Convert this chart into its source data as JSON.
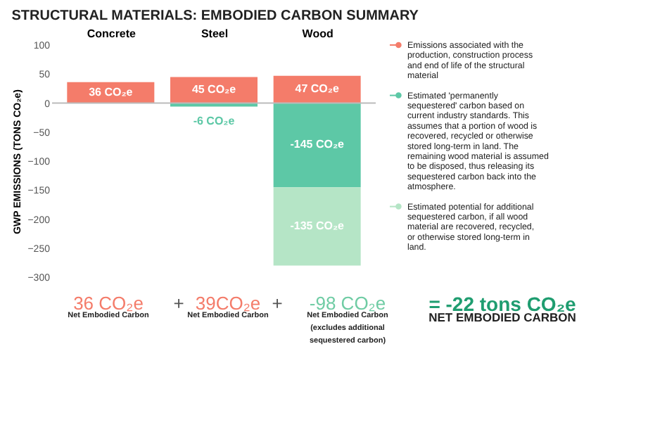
{
  "chart_data": {
    "type": "bar",
    "title": "STRUCTURAL MATERIALS: EMBODIED CARBON SUMMARY",
    "ylabel": "GWP EMISSIONS (TONS CO₂e)",
    "categories": [
      "Concrete",
      "Steel",
      "Wood"
    ],
    "stacked": true,
    "series": [
      {
        "name": "Emissions associated with the production, construction process and end of life of the structural material",
        "color": "#f47c6a",
        "values": [
          36,
          45,
          47
        ],
        "value_labels": [
          "36 CO₂e",
          "45 CO₂e",
          "47 CO₂e"
        ]
      },
      {
        "name": "Estimated 'permanently sequestered' carbon based on current industry standards. This assumes that a portion of wood is recovered, recycled or otherwise stored long-term in land. The remaining wood material is assumed to be disposed, thus releasing its sequestered carbon back into the atmosphere.",
        "color": "#5dc8a6",
        "values": [
          0,
          -6,
          -145
        ],
        "value_labels": [
          null,
          "-6 CO₂e",
          "-145 CO₂e"
        ]
      },
      {
        "name": "Estimated potential for additional sequestered carbon, if all wood material are recovered, recycled, or otherwise stored long-term in land.",
        "color": "#b5e5c6",
        "values": [
          0,
          0,
          -135
        ],
        "value_labels": [
          null,
          null,
          "-135 CO₂e"
        ]
      }
    ],
    "ylim": [
      -300,
      100
    ],
    "yticks": [
      -300,
      -250,
      -200,
      -150,
      -100,
      -50,
      0,
      50,
      100
    ],
    "grid": false,
    "legend": "right",
    "ref_lines": [
      {
        "axis": "y",
        "value": 0,
        "color": "#bbbbbb"
      }
    ],
    "annotations": [
      "36 CO₂e",
      "Net Embodied Carbon",
      "+",
      "39CO₂e",
      "Net Embodied Carbon",
      "+",
      "-98 CO₂e",
      "Net Embodied Carbon (excludes additional sequestered carbon)",
      "= -22 tons CO₂e",
      "NET EMBODIED CARBON"
    ]
  }
}
